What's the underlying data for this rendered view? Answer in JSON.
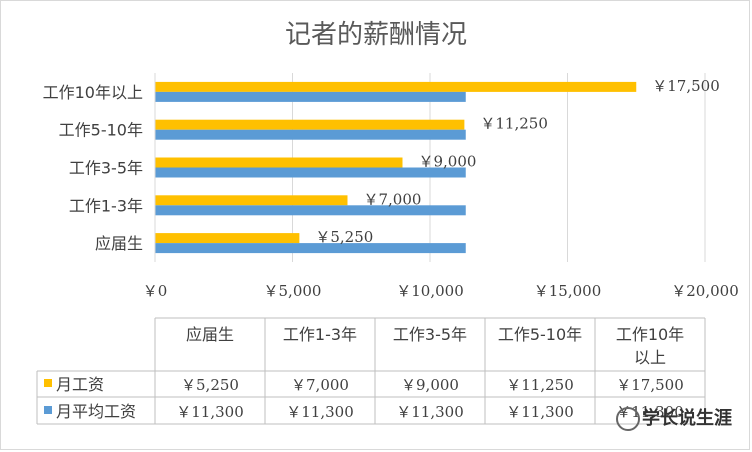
{
  "chart_data": {
    "type": "bar",
    "orientation": "horizontal",
    "title": "记者的薪酬情况",
    "categories": [
      "应届生",
      "工作1-3年",
      "工作3-5年",
      "工作5-10年",
      "工作10年以上"
    ],
    "table_headers": [
      "应届生",
      "工作1-3年",
      "工作3-5年",
      "工作5-10年",
      "工作10年以上"
    ],
    "series": [
      {
        "name": "月工资",
        "color": "#ffc000",
        "values": [
          5250,
          7000,
          9000,
          11250,
          17500
        ],
        "labels": [
          "￥5,250",
          "￥7,000",
          "￥9,000",
          "￥11,250",
          "￥17,500"
        ]
      },
      {
        "name": "月平均工资",
        "color": "#5b9bd5",
        "values": [
          11300,
          11300,
          11300,
          11300,
          11300
        ],
        "labels": [
          "￥11,300",
          "￥11,300",
          "￥11,300",
          "￥11,300",
          "￥11,300"
        ]
      }
    ],
    "xlim": [
      0,
      20000
    ],
    "x_ticks": [
      0,
      5000,
      10000,
      15000,
      20000
    ],
    "x_tick_labels": [
      "￥0",
      "￥5,000",
      "￥10,000",
      "￥15,000",
      "￥20,000"
    ],
    "data_labels_series": "月工资",
    "grid": true,
    "legend": "data-table"
  },
  "watermark": "学长说生涯"
}
